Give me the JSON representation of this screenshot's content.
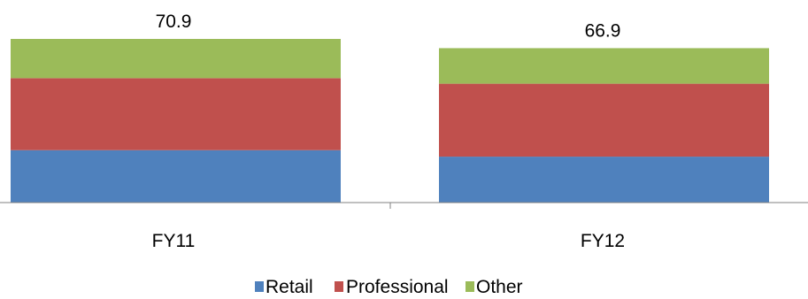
{
  "chart_data": {
    "type": "bar",
    "stacked": true,
    "categories": [
      "FY11",
      "FY12"
    ],
    "series": [
      {
        "name": "Retail",
        "color": "#4f81bd",
        "values": [
          22.7,
          19.9
        ]
      },
      {
        "name": "Professional",
        "color": "#c0504d",
        "values": [
          31.2,
          31.6
        ]
      },
      {
        "name": "Other",
        "color": "#9bbb59",
        "values": [
          17.0,
          15.4
        ]
      }
    ],
    "totals": [
      "70.9",
      "66.9"
    ],
    "legend_position": "bottom",
    "ylim": [
      0,
      85
    ],
    "grid": false
  }
}
